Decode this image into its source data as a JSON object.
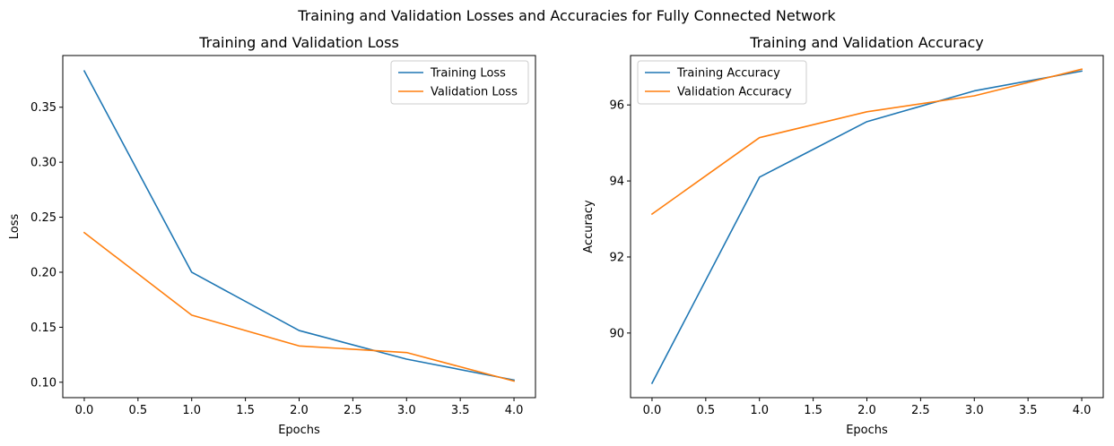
{
  "figure": {
    "suptitle": "Training and Validation Losses and Accuracies for Fully Connected Network"
  },
  "chart_data": [
    {
      "type": "line",
      "title": "Training and Validation Loss",
      "xlabel": "Epochs",
      "ylabel": "Loss",
      "x": [
        0,
        1,
        2,
        3,
        4
      ],
      "xlim": [
        -0.2,
        4.2
      ],
      "ylim": [
        0.086,
        0.397
      ],
      "xticks": [
        "0.0",
        "0.5",
        "1.0",
        "1.5",
        "2.0",
        "2.5",
        "3.0",
        "3.5",
        "4.0"
      ],
      "yticks": [
        "0.10",
        "0.15",
        "0.20",
        "0.25",
        "0.30",
        "0.35"
      ],
      "grid": false,
      "legend_position": "upper right",
      "series": [
        {
          "name": "Training Loss",
          "values": [
            0.383,
            0.2,
            0.147,
            0.121,
            0.102
          ],
          "color": "#1f77b4"
        },
        {
          "name": "Validation Loss",
          "values": [
            0.236,
            0.161,
            0.133,
            0.127,
            0.101
          ],
          "color": "#ff7f0e"
        }
      ]
    },
    {
      "type": "line",
      "title": "Training and Validation Accuracy",
      "xlabel": "Epochs",
      "ylabel": "Accuracy",
      "x": [
        0,
        1,
        2,
        3,
        4
      ],
      "xlim": [
        -0.2,
        4.2
      ],
      "ylim": [
        88.3,
        97.3
      ],
      "xticks": [
        "0.0",
        "0.5",
        "1.0",
        "1.5",
        "2.0",
        "2.5",
        "3.0",
        "3.5",
        "4.0"
      ],
      "yticks": [
        "90",
        "92",
        "94",
        "96"
      ],
      "grid": false,
      "legend_position": "upper left",
      "series": [
        {
          "name": "Training Accuracy",
          "values": [
            88.68,
            94.1,
            95.56,
            96.37,
            96.89
          ],
          "color": "#1f77b4"
        },
        {
          "name": "Validation Accuracy",
          "values": [
            93.13,
            95.14,
            95.82,
            96.24,
            96.94
          ],
          "color": "#ff7f0e"
        }
      ]
    }
  ]
}
